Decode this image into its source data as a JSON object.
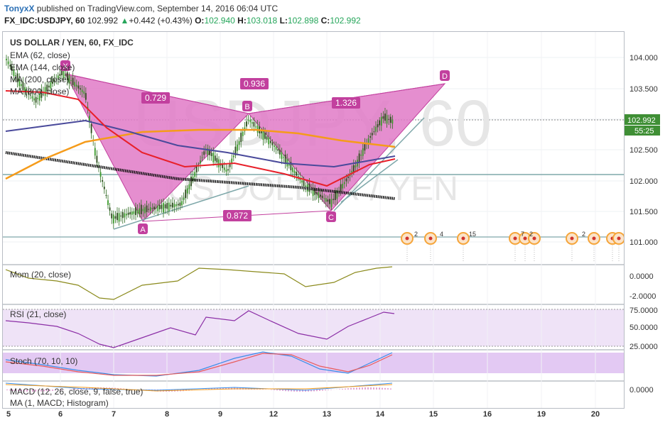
{
  "header": {
    "author": "TonyxX",
    "published_text": "published on TradingView.com, September 14, 2016 06:04 UTC",
    "symbol_tf": "FX_IDC:USDJPY, 60",
    "last": "102.992",
    "change_arrow": "▲",
    "change": "+0.442 (+0.43%)",
    "o_label": "O:",
    "o": "102.940",
    "h_label": "H:",
    "h": "103.018",
    "l_label": "L:",
    "l": "102.898",
    "c_label": "C:",
    "c": "102.992"
  },
  "main": {
    "title": "US DOLLAR / YEN, 60, FX_IDC",
    "indicators": [
      "EMA (62, close)",
      "EMA (144, close)",
      "MA (200, close)",
      "MA (800, close)"
    ],
    "watermark_top": "USDJPY, 60",
    "watermark_bottom": "US DOLLAR / YEN",
    "price_labels": [
      "104.000",
      "103.500",
      "103.000",
      "102.500",
      "102.000",
      "101.500",
      "101.000"
    ],
    "current_price": "102.992",
    "countdown": "55:25",
    "pattern_points": [
      "X",
      "A",
      "B",
      "C",
      "D"
    ],
    "ratios": [
      "0.729",
      "0.936",
      "1.326",
      "0.872"
    ],
    "event_counts": [
      "2",
      "4",
      "15",
      "7",
      "2",
      "2"
    ]
  },
  "panes": {
    "mom": {
      "label": "Mom (20, close)",
      "ticks": [
        "0.0000",
        "-2.0000"
      ]
    },
    "rsi": {
      "label": "RSI (21, close)",
      "ticks": [
        "75.0000",
        "50.0000",
        "25.0000"
      ]
    },
    "stoch": {
      "label": "Stoch (70, 10, 10)"
    },
    "macd": {
      "label1": "MACD (12, 26, close, 9, false, true)",
      "label2": "MA (1, MACD; Histogram)",
      "ticks": [
        "0.0000"
      ]
    }
  },
  "time_axis": [
    "5",
    "6",
    "7",
    "8",
    "9",
    "12",
    "13",
    "14",
    "15",
    "16",
    "19",
    "20"
  ],
  "colors": {
    "ema62": "#e8202a",
    "ema144": "#f59b1a",
    "ma200": "#4a4a9b",
    "ma800": "#111111",
    "pattern_fill": "#e07ac7",
    "pattern_stroke": "#c2409e",
    "trend": "#7fa8aa",
    "oscillator": "#8b8a1c",
    "rsi": "#8b2ea6",
    "stoch_k": "#3a8ee8",
    "stoch_d": "#e85c5c",
    "axis_text": "#333333"
  }
}
